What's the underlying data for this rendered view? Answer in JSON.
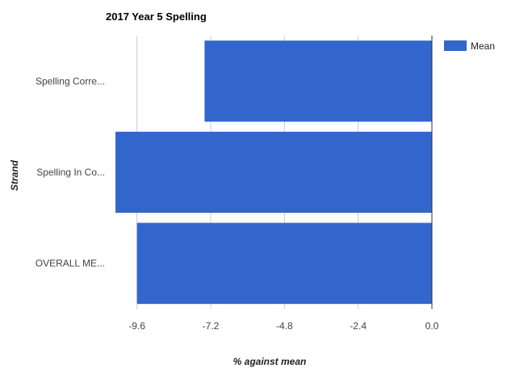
{
  "chart_data": {
    "type": "bar",
    "orientation": "horizontal",
    "title": "2017 Year 5 Spelling",
    "xlabel": "% against mean",
    "ylabel": "Strand",
    "categories": [
      "Spelling Corre...",
      "Spelling In Co...",
      "OVERALL ME..."
    ],
    "series": [
      {
        "name": "Mean",
        "values": [
          -7.4,
          -10.3,
          -9.6
        ]
      }
    ],
    "xlim": [
      -10.8,
      0.0
    ],
    "xticks": [
      -9.6,
      -7.2,
      -4.8,
      -2.4,
      0.0
    ],
    "xtick_labels": [
      "-9.6",
      "-7.2",
      "-4.8",
      "-2.4",
      "0.0"
    ],
    "grid": true,
    "legend": "top-right",
    "colors": {
      "series": "#3366cc",
      "grid": "#cccccc",
      "baseline": "#333333"
    }
  }
}
